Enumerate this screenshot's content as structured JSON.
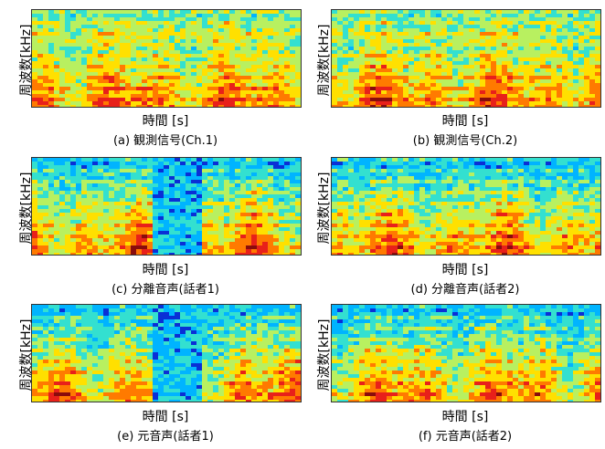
{
  "common": {
    "y_label": "周波数[kHz]",
    "x_label": "時間 [s]",
    "colormap": [
      "#0a2fd6",
      "#00b4ff",
      "#33e0d0",
      "#b8f060",
      "#ffe000",
      "#ff7a00",
      "#e8201a",
      "#8a0c0c"
    ]
  },
  "panels": [
    {
      "caption": "(a) 観測信号(Ch.1)",
      "kind": "mix",
      "gaps": [],
      "seed": 11
    },
    {
      "caption": "(b) 観測信号(Ch.2)",
      "kind": "mix",
      "gaps": [],
      "seed": 23
    },
    {
      "caption": "(c) 分離音声(話者1)",
      "kind": "spk1",
      "gaps": [
        [
          0.43,
          0.62
        ]
      ],
      "seed": 37
    },
    {
      "caption": "(d) 分離音声(話者2)",
      "kind": "spk2",
      "gaps": [],
      "seed": 41
    },
    {
      "caption": "(e) 元音声(話者1)",
      "kind": "spk1",
      "gaps": [
        [
          0.44,
          0.63
        ]
      ],
      "seed": 53
    },
    {
      "caption": "(f) 元音声(話者2)",
      "kind": "spk2",
      "gaps": [],
      "seed": 67
    }
  ]
}
